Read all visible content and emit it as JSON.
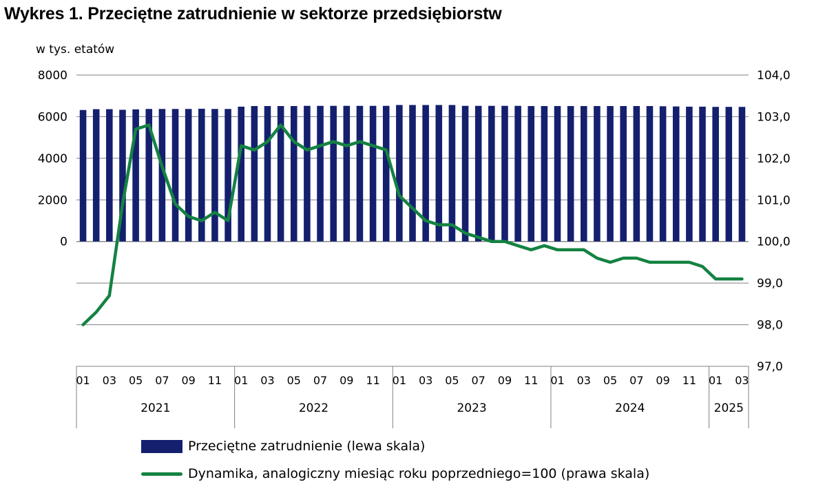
{
  "title": "Wykres 1. Przeciętne zatrudnienie w sektorze przedsiębiorstw",
  "unit_label": "w tys. etatów",
  "legend": {
    "bar_label": "Przeciętne zatrudnienie (lewa skala)",
    "line_label": "Dynamika, analogiczny miesiąc roku poprzedniego=100 (prawa skala)"
  },
  "colors": {
    "bar": "#14206e",
    "line": "#148242",
    "grid": "#808080"
  },
  "chart_data": {
    "type": "bar",
    "categories": [
      "01",
      "02",
      "03",
      "04",
      "05",
      "06",
      "07",
      "08",
      "09",
      "10",
      "11",
      "12",
      "01",
      "02",
      "03",
      "04",
      "05",
      "06",
      "07",
      "08",
      "09",
      "10",
      "11",
      "12",
      "01",
      "02",
      "03",
      "04",
      "05",
      "06",
      "07",
      "08",
      "09",
      "10",
      "11",
      "12",
      "01",
      "02",
      "03",
      "04",
      "05",
      "06",
      "07",
      "08",
      "09",
      "10",
      "11",
      "12",
      "01",
      "02",
      "03"
    ],
    "tick_labels": [
      "01",
      "03",
      "05",
      "07",
      "09",
      "11",
      "01",
      "03",
      "05",
      "07",
      "09",
      "11",
      "01",
      "03",
      "05",
      "07",
      "09",
      "11",
      "01",
      "03",
      "05",
      "07",
      "09",
      "11",
      "01",
      "03"
    ],
    "years": [
      {
        "label": "2021",
        "months": 12
      },
      {
        "label": "2022",
        "months": 12
      },
      {
        "label": "2023",
        "months": 12
      },
      {
        "label": "2024",
        "months": 12
      },
      {
        "label": "2025",
        "months": 3
      }
    ],
    "series": [
      {
        "name": "Przeciętne zatrudnienie (lewa skala)",
        "type": "bar",
        "axis": "left",
        "values": [
          6320,
          6360,
          6360,
          6330,
          6350,
          6370,
          6370,
          6370,
          6370,
          6380,
          6370,
          6370,
          6480,
          6510,
          6510,
          6510,
          6510,
          6520,
          6520,
          6520,
          6520,
          6520,
          6520,
          6520,
          6560,
          6560,
          6560,
          6560,
          6560,
          6520,
          6520,
          6520,
          6520,
          6520,
          6510,
          6510,
          6510,
          6510,
          6510,
          6510,
          6510,
          6510,
          6510,
          6510,
          6500,
          6490,
          6480,
          6480,
          6470,
          6470,
          6470
        ]
      },
      {
        "name": "Dynamika, analogiczny miesiąc roku poprzedniego=100 (prawa skala)",
        "type": "line",
        "axis": "right",
        "values": [
          98.0,
          98.3,
          98.7,
          100.9,
          102.7,
          102.8,
          101.8,
          100.9,
          100.6,
          100.5,
          100.7,
          100.5,
          102.3,
          102.2,
          102.4,
          102.8,
          102.4,
          102.2,
          102.3,
          102.4,
          102.3,
          102.4,
          102.3,
          102.2,
          101.1,
          100.8,
          100.5,
          100.4,
          100.4,
          100.2,
          100.1,
          100.0,
          100.0,
          99.9,
          99.8,
          99.9,
          99.8,
          99.8,
          99.8,
          99.6,
          99.5,
          99.6,
          99.6,
          99.5,
          99.5,
          99.5,
          99.5,
          99.4,
          99.1,
          99.1,
          99.1
        ]
      }
    ],
    "y_left": {
      "ticks": [
        "8000",
        "6000",
        "4000",
        "2000",
        "0"
      ],
      "values": [
        8000,
        6000,
        4000,
        2000,
        0
      ]
    },
    "y_right": {
      "ticks": [
        "104,0",
        "103,0",
        "102,0",
        "101,0",
        "100,0",
        "99,0",
        "98,0",
        "97,0"
      ],
      "values": [
        104,
        103,
        102,
        101,
        100,
        99,
        98,
        97
      ],
      "range": [
        97,
        104
      ]
    },
    "grid": true,
    "legend_position": "bottom"
  }
}
